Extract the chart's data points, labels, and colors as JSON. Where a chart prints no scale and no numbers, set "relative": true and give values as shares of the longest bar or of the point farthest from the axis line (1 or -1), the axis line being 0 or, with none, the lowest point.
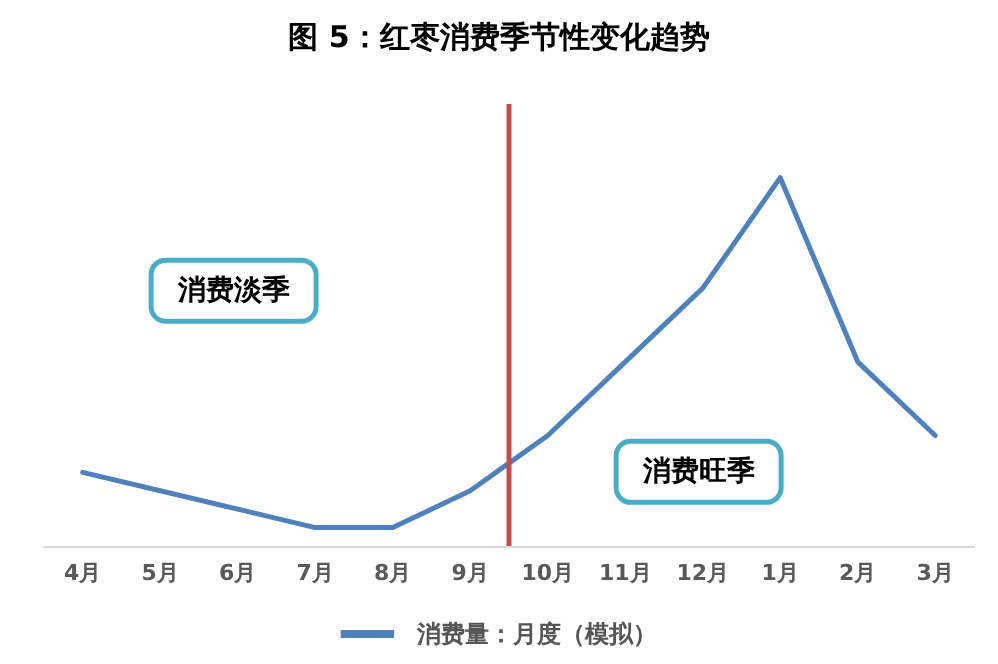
{
  "chart_data": {
    "type": "line",
    "title": "图 5：红枣消费季节性变化趋势",
    "relative": true,
    "categories": [
      "4月",
      "5月",
      "6月",
      "7月",
      "8月",
      "9月",
      "10月",
      "11月",
      "12月",
      "1月",
      "2月",
      "3月"
    ],
    "series": [
      {
        "name": "消费量：月度（模拟）",
        "color": "#4f81bd",
        "values": [
          0.2,
          0.15,
          0.1,
          0.05,
          0.05,
          0.15,
          0.3,
          0.5,
          0.7,
          1,
          0.5,
          0.3
        ]
      }
    ],
    "ref_lines": [
      {
        "axis": "x",
        "value": "10月",
        "color": "#c0504d"
      }
    ],
    "annotations": [
      "消费淡季",
      "消费旺季"
    ],
    "legend": "bottom",
    "grid": false,
    "marker": "none",
    "line_style": "solid"
  }
}
